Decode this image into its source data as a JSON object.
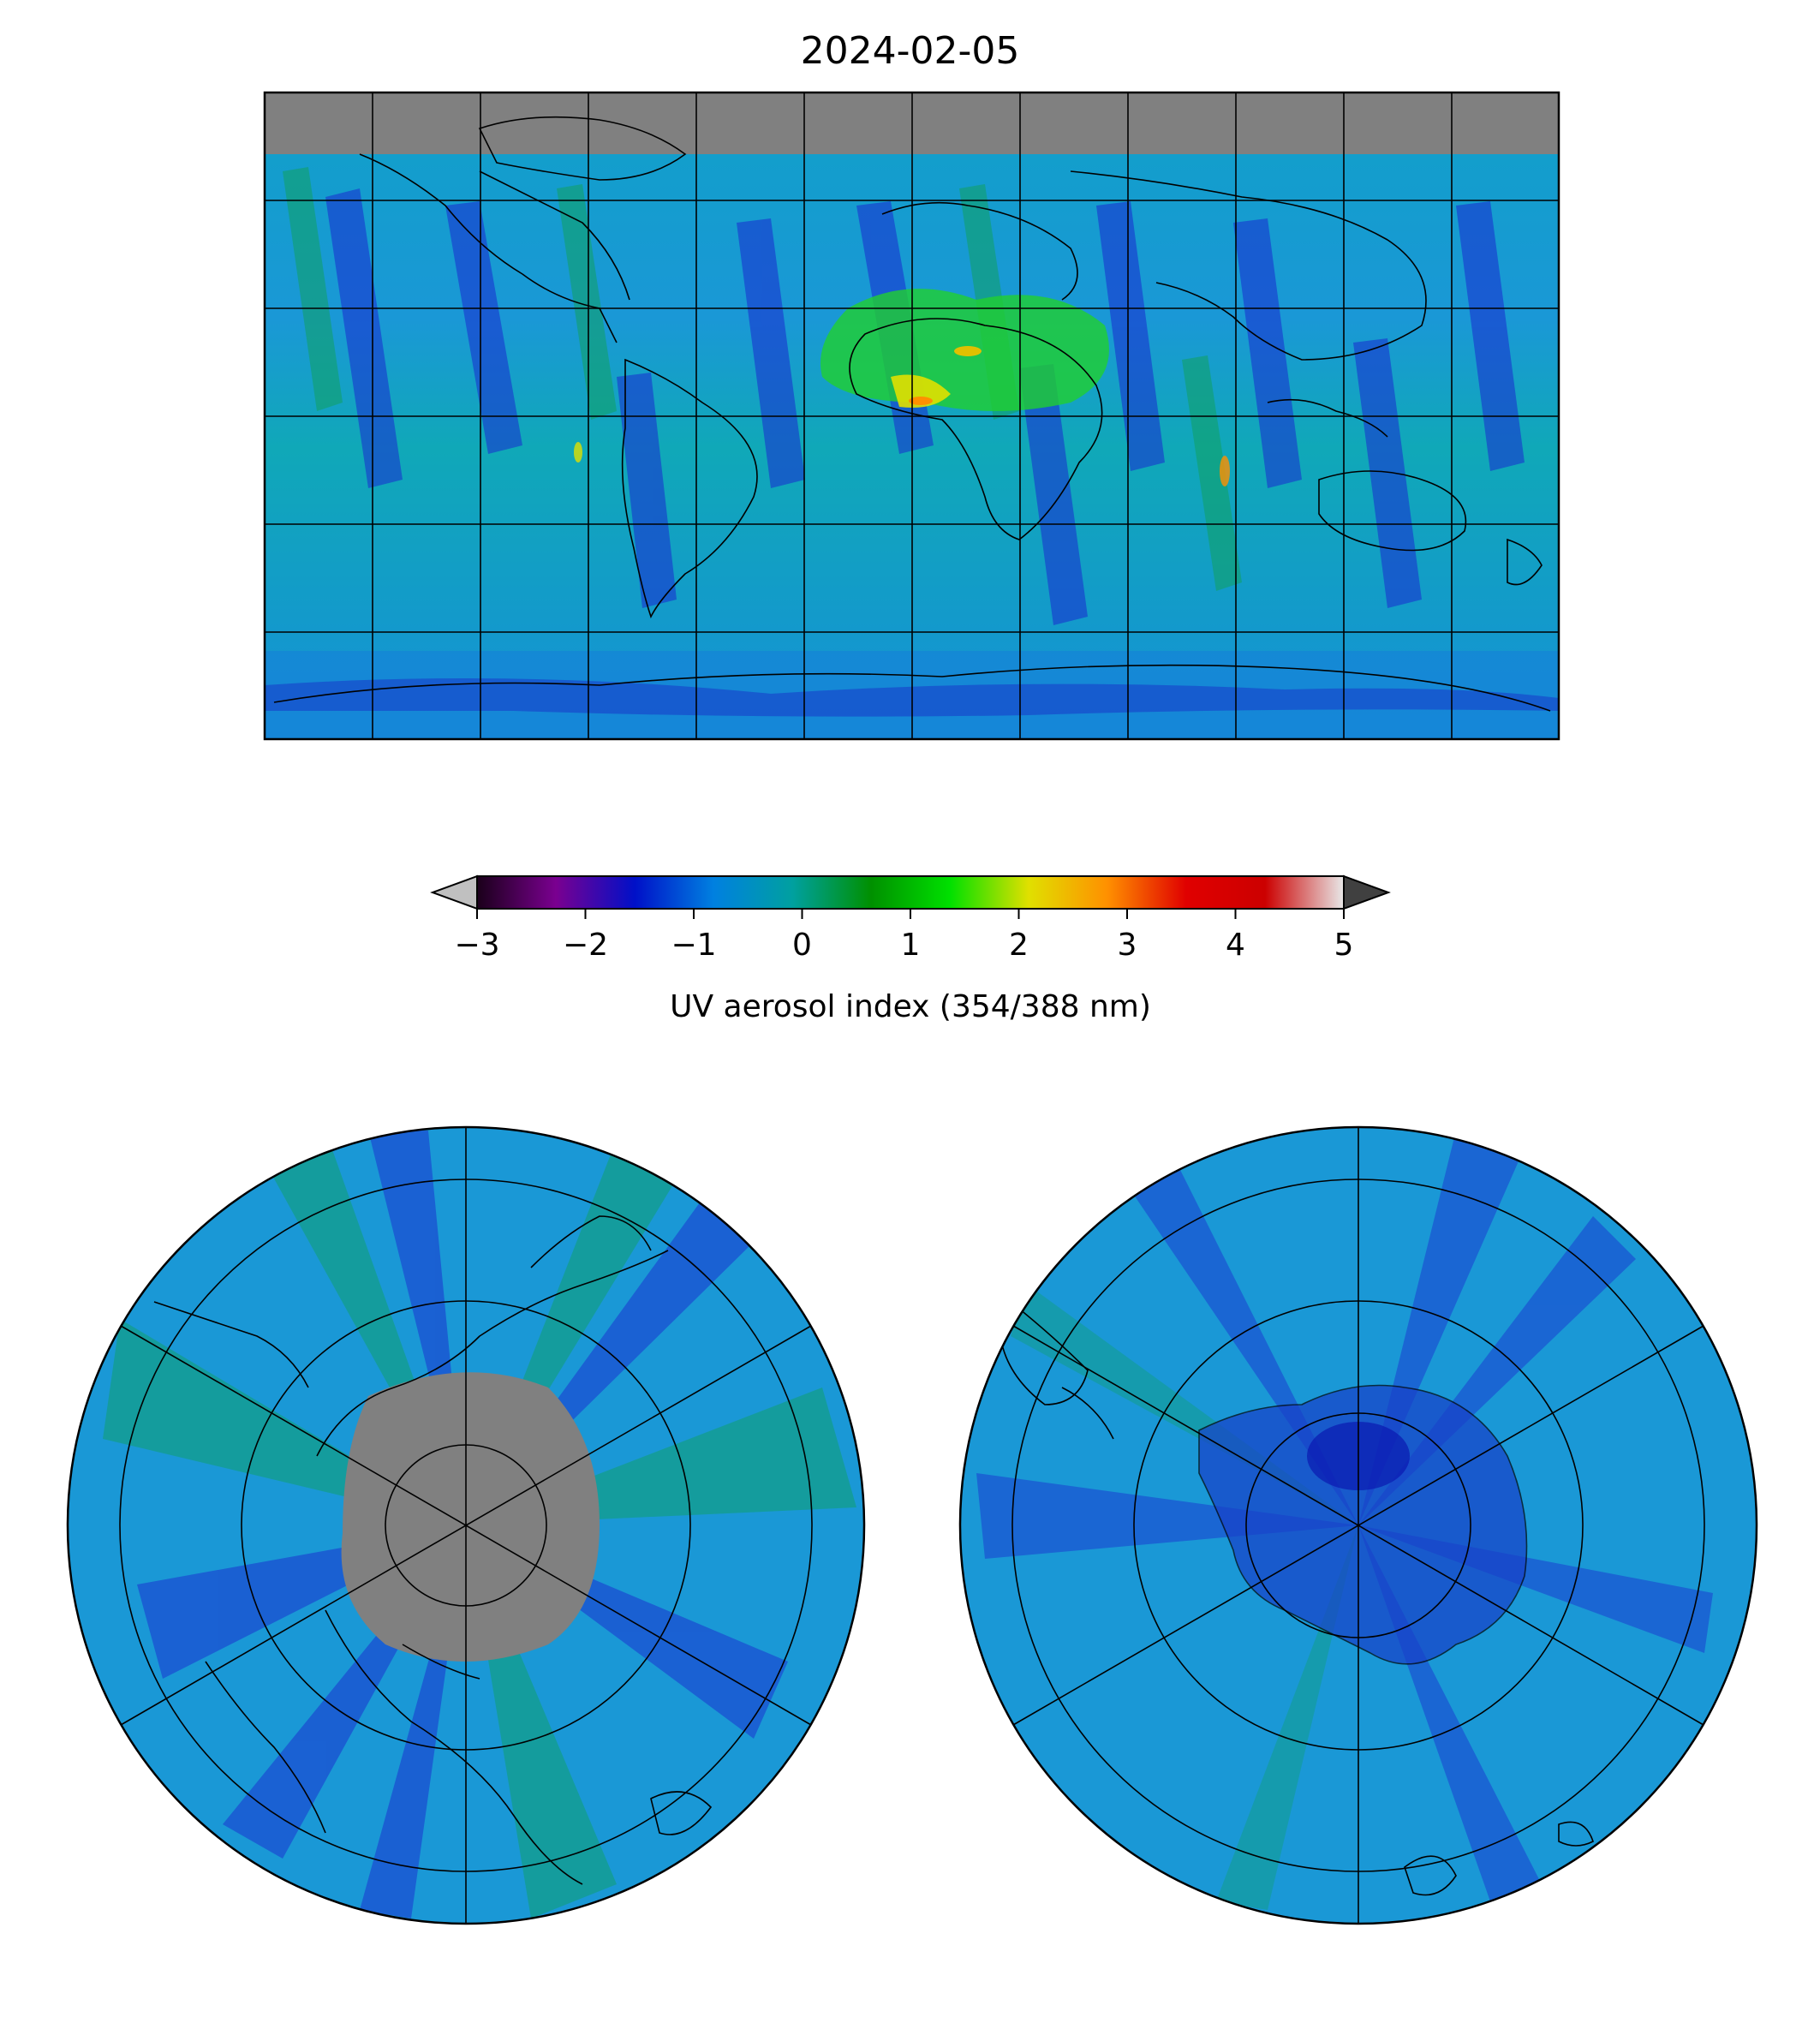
{
  "title": "2024-02-05",
  "colorbar": {
    "label": "UV aerosol index (354/388 nm)",
    "ticks": [
      "−3",
      "−2",
      "−1",
      "0",
      "1",
      "2",
      "3",
      "4",
      "5"
    ],
    "tick_values": [
      -3,
      -2,
      -1,
      0,
      1,
      2,
      3,
      4,
      5
    ],
    "range": [
      -3,
      5
    ],
    "extend": "both",
    "colors": [
      "#1a001a",
      "#7a0090",
      "#0010c8",
      "#0080e0",
      "#00a0a0",
      "#009000",
      "#00e000",
      "#e0e000",
      "#ff9000",
      "#e00000",
      "#cc0000",
      "#e8e8e8"
    ]
  },
  "colors": {
    "no_data": "#808080",
    "background_field": "#1a9ad0",
    "coastline": "#000000",
    "grid": "#000000"
  },
  "maps": [
    {
      "id": "global",
      "projection": "equirectangular",
      "lon_range": [
        -180,
        180
      ],
      "lat_range": [
        -90,
        90
      ]
    },
    {
      "id": "north-polar",
      "projection": "north-polar-stereographic"
    },
    {
      "id": "south-polar",
      "projection": "south-polar-stereographic"
    }
  ]
}
